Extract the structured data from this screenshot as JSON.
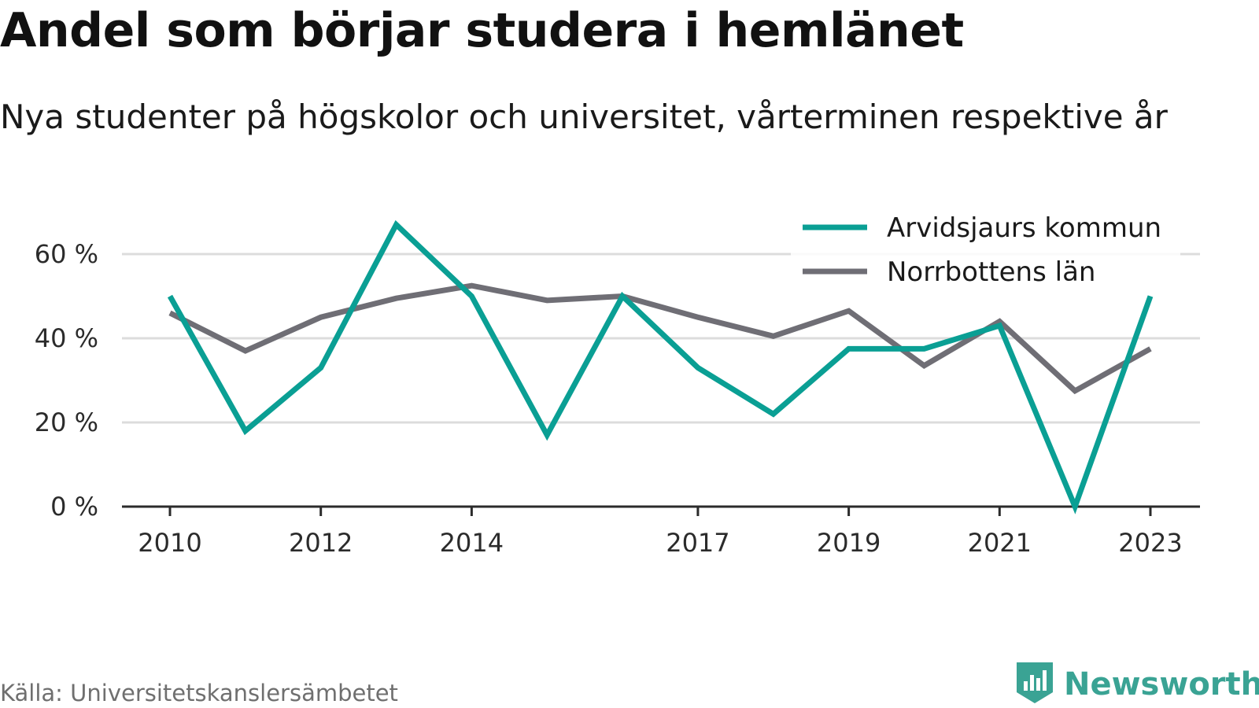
{
  "title": "Andel som börjar studera i hemlänet",
  "subtitle": "Nya studenter på högskolor och universitet, vårterminen respektive år",
  "source": "Källa: Universitetskanslersämbetet",
  "brand": {
    "name": "Newsworthy",
    "icon": "newsworthy-logo-icon",
    "color": "#3aa394"
  },
  "chart_data": {
    "type": "line",
    "title": "Andel som börjar studera i hemlänet",
    "subtitle": "Nya studenter på högskolor och universitet, vårterminen respektive år",
    "x": [
      2010,
      2011,
      2012,
      2013,
      2014,
      2015,
      2016,
      2017,
      2018,
      2019,
      2020,
      2021,
      2022,
      2023
    ],
    "x_tick_labels": [
      "2010",
      "2012",
      "2014",
      "2017",
      "2019",
      "2021",
      "2023"
    ],
    "y_ticks": [
      0,
      20,
      40,
      60
    ],
    "y_tick_labels": [
      "0 %",
      "20 %",
      "40 %",
      "60 %"
    ],
    "ylim": [
      0,
      70
    ],
    "grid": true,
    "legend_position": "top-right",
    "series": [
      {
        "name": "Arvidsjaurs kommun",
        "color": "#0a9f94",
        "values": [
          50,
          18,
          33,
          67,
          50,
          17,
          50,
          33,
          22,
          37.5,
          37.5,
          43,
          0,
          50
        ]
      },
      {
        "name": "Norrbottens län",
        "color": "#6f6e75",
        "values": [
          46,
          37,
          45,
          49.5,
          52.5,
          49,
          50,
          45,
          40.5,
          46.5,
          33.5,
          44,
          27.5,
          37.5
        ]
      }
    ]
  }
}
